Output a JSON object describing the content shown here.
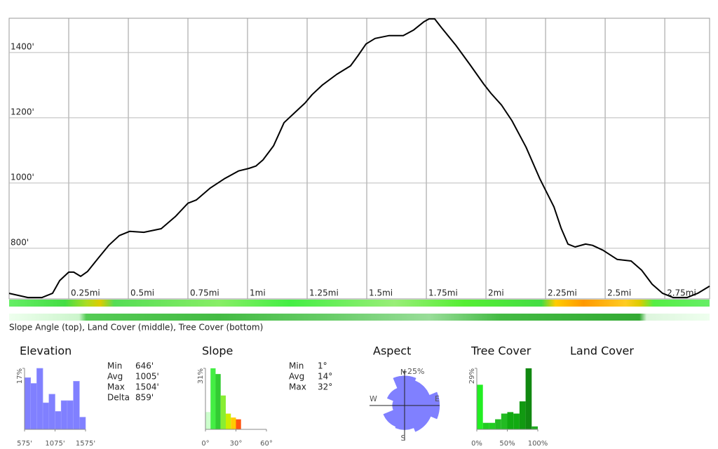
{
  "chart_data": [
    {
      "type": "line",
      "x": [
        0,
        0.079,
        0.138,
        0.182,
        0.212,
        0.25,
        0.271,
        0.3,
        0.329,
        0.374,
        0.418,
        0.462,
        0.506,
        0.565,
        0.638,
        0.697,
        0.75,
        0.785,
        0.844,
        0.903,
        0.962,
        1.006,
        1.035,
        1.065,
        1.109,
        1.153,
        1.197,
        1.241,
        1.271,
        1.315,
        1.374,
        1.432,
        1.462,
        1.497,
        1.535,
        1.594,
        1.653,
        1.697,
        1.741,
        1.762,
        1.785,
        1.815,
        1.874,
        1.932,
        1.991,
        2.021,
        2.065,
        2.109,
        2.168,
        2.226,
        2.285,
        2.315,
        2.344,
        2.374,
        2.418,
        2.447,
        2.491,
        2.55,
        2.609,
        2.653,
        2.697,
        2.741,
        2.785,
        2.844,
        2.888,
        2.938
      ],
      "values": [
        662,
        649,
        649,
        662,
        701,
        727,
        727,
        714,
        729,
        770,
        809,
        839,
        852,
        849,
        860,
        897,
        938,
        948,
        985,
        1013,
        1037,
        1045,
        1052,
        1071,
        1114,
        1185,
        1215,
        1245,
        1271,
        1301,
        1333,
        1359,
        1389,
        1426,
        1443,
        1452,
        1452,
        1469,
        1495,
        1503,
        1503,
        1475,
        1422,
        1364,
        1303,
        1275,
        1239,
        1191,
        1110,
        1013,
        927,
        862,
        813,
        804,
        813,
        809,
        794,
        766,
        761,
        733,
        690,
        662,
        649,
        649,
        662,
        684
      ],
      "color": "#000000",
      "xlim": [
        0,
        2.938
      ],
      "ylim": [
        645,
        1505
      ],
      "xticks": [
        {
          "value": 0.25,
          "label": "0.25mi"
        },
        {
          "value": 0.5,
          "label": "0.5mi"
        },
        {
          "value": 0.75,
          "label": "0.75mi"
        },
        {
          "value": 1,
          "label": "1mi"
        },
        {
          "value": 1.25,
          "label": "1.25mi"
        },
        {
          "value": 1.5,
          "label": "1.5mi"
        },
        {
          "value": 1.75,
          "label": "1.75mi"
        },
        {
          "value": 2,
          "label": "2mi"
        },
        {
          "value": 2.25,
          "label": "2.25mi"
        },
        {
          "value": 2.5,
          "label": "2.5mi"
        },
        {
          "value": 2.75,
          "label": "2.75mi"
        }
      ],
      "yticks": [
        {
          "value": 800,
          "label": "800'"
        },
        {
          "value": 1000,
          "label": "1000'"
        },
        {
          "value": 1200,
          "label": "1200'"
        },
        {
          "value": 1400,
          "label": "1400'"
        }
      ],
      "grid": true
    },
    {
      "type": "histogram",
      "title": "Elevation",
      "bins": [
        575,
        675,
        775,
        875,
        975,
        1075,
        1175,
        1275,
        1375,
        1475,
        1575
      ],
      "values": [
        14.4,
        12.8,
        17,
        7.4,
        9.8,
        5,
        8,
        8,
        13.4,
        3.4
      ],
      "color": "#8080ff",
      "xlim": [
        575,
        1575
      ],
      "xticks": [
        {
          "value": 575,
          "label": "575'"
        },
        {
          "value": 1075,
          "label": "1075'"
        },
        {
          "value": 1575,
          "label": "1575'"
        }
      ],
      "ylim": [
        0,
        17
      ],
      "yticks": [
        {
          "value": 17,
          "label": "17%"
        }
      ],
      "stats": [
        [
          "Min",
          "646'"
        ],
        [
          "Avg",
          "1005'"
        ],
        [
          "Max",
          "1504'"
        ],
        [
          "Delta",
          "859'"
        ]
      ]
    },
    {
      "type": "histogram",
      "title": "Slope",
      "bins": [
        0,
        5,
        10,
        15,
        20,
        25,
        30,
        35
      ],
      "values": [
        8.8,
        31,
        28.1,
        17.2,
        8,
        6,
        5.1
      ],
      "colors": [
        "#ccffcc",
        "#44ee44",
        "#33cc33",
        "#88ee33",
        "#ccee00",
        "#ffcc00",
        "#ff5511"
      ],
      "xlim": [
        0,
        60
      ],
      "xticks": [
        {
          "value": 0,
          "label": "0°"
        },
        {
          "value": 30,
          "label": "30°"
        },
        {
          "value": 60,
          "label": "60°"
        }
      ],
      "ylim": [
        0,
        31
      ],
      "yticks": [
        {
          "value": 31,
          "label": "31%"
        }
      ],
      "stats": [
        [
          "Min",
          "1°"
        ],
        [
          "Avg",
          "14°"
        ],
        [
          "Max",
          "32°"
        ]
      ]
    },
    {
      "type": "rose",
      "title": "Aspect",
      "values": [
        22,
        20,
        26,
        21,
        18,
        17,
        9,
        14
      ],
      "color": "#8080ff",
      "axis_labels": [
        "N",
        "E",
        "S",
        "W"
      ],
      "rlim": [
        0,
        25
      ],
      "rticks": [
        {
          "value": 25,
          "label": "25%"
        }
      ]
    },
    {
      "type": "histogram",
      "title": "Tree Cover",
      "bins": [
        0,
        10,
        20,
        30,
        40,
        50,
        60,
        70,
        80,
        90,
        100
      ],
      "values": [
        21.2,
        3.1,
        3.1,
        4.8,
        7.5,
        8.2,
        7.5,
        13.3,
        29,
        1.4
      ],
      "colors": [
        "#22ee22",
        "#22cc22",
        "#22cc22",
        "#22bb22",
        "#22bb22",
        "#11aa11",
        "#11aa11",
        "#119911",
        "#118811",
        "#22aa22"
      ],
      "xlim": [
        0,
        100
      ],
      "xticks": [
        {
          "value": 0,
          "label": "0%"
        },
        {
          "value": 50,
          "label": "50%"
        },
        {
          "value": 100,
          "label": "100%"
        }
      ],
      "ylim": [
        0,
        29
      ],
      "yticks": [
        {
          "value": 29,
          "label": "29%"
        }
      ]
    }
  ],
  "caption": "Slope Angle (top), Land Cover (middle), Tree Cover (bottom)",
  "land_cover_title": "Land Cover"
}
